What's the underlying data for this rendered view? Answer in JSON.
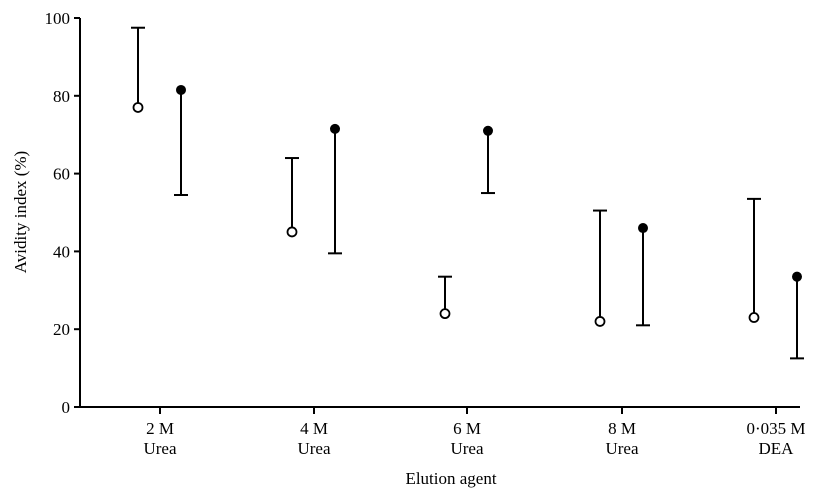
{
  "chart_data": {
    "type": "scatter",
    "title": "",
    "xlabel": "Elution agent",
    "ylabel": "Avidity index (%)",
    "ylim": [
      0,
      100
    ],
    "yticks": [
      "0",
      "20",
      "40",
      "60",
      "80",
      "100"
    ],
    "categories": [
      {
        "line1": "2 M",
        "line2": "Urea"
      },
      {
        "line1": "4 M",
        "line2": "Urea"
      },
      {
        "line1": "6 M",
        "line2": "Urea"
      },
      {
        "line1": "8 M",
        "line2": "Urea"
      },
      {
        "line1": "0·035 M",
        "line2": "DEA"
      }
    ],
    "series": [
      {
        "marker": "open-circle",
        "points": [
          {
            "category": 0,
            "mean": 77,
            "error": 97.5,
            "direction": "up"
          },
          {
            "category": 1,
            "mean": 45,
            "error": 64,
            "direction": "up"
          },
          {
            "category": 2,
            "mean": 24,
            "error": 33.5,
            "direction": "up"
          },
          {
            "category": 3,
            "mean": 22,
            "error": 50.5,
            "direction": "up"
          },
          {
            "category": 4,
            "mean": 23,
            "error": 53.5,
            "direction": "up"
          }
        ]
      },
      {
        "marker": "filled-circle",
        "points": [
          {
            "category": 0,
            "mean": 81.5,
            "error": 54.5,
            "direction": "down"
          },
          {
            "category": 1,
            "mean": 71.5,
            "error": 39.5,
            "direction": "down"
          },
          {
            "category": 2,
            "mean": 71,
            "error": 55,
            "direction": "down"
          },
          {
            "category": 3,
            "mean": 46,
            "error": 21,
            "direction": "down"
          },
          {
            "category": 4,
            "mean": 33.5,
            "error": 12.5,
            "direction": "down"
          }
        ]
      }
    ],
    "grid": false,
    "legend": "none"
  }
}
